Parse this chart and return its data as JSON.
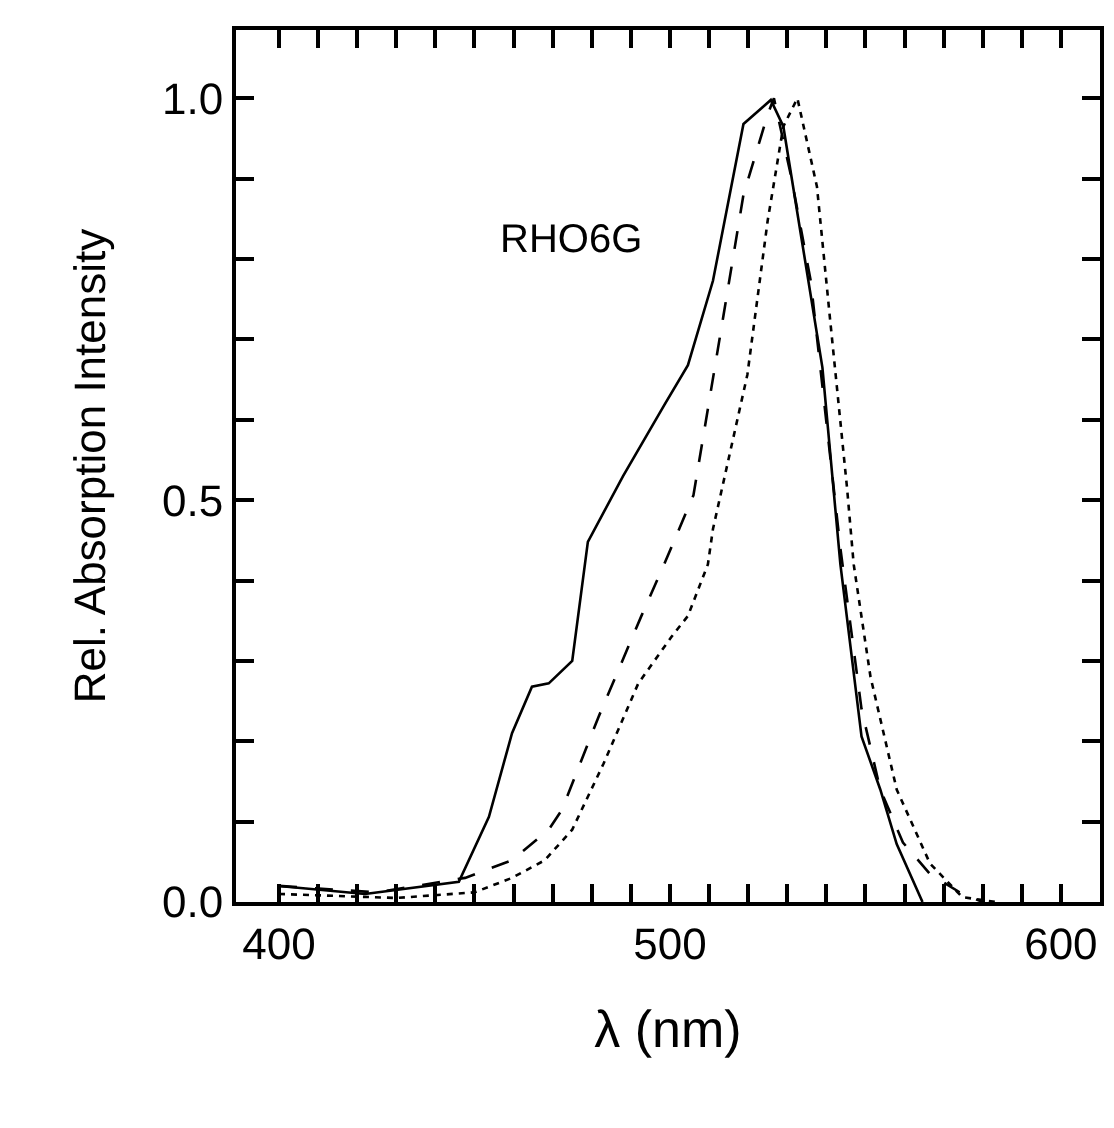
{
  "chart_data": {
    "type": "line",
    "xlabel": "λ (nm)",
    "ylabel": "Rel. Absorption Intensity",
    "annotations": [
      "RHO6G"
    ],
    "xlim": [
      389,
      610
    ],
    "ylim": [
      0,
      1.085
    ],
    "xticks": [
      400,
      {
        "value": 410,
        "label": null
      },
      {
        "value": 420,
        "label": null
      },
      {
        "value": 430,
        "label": null
      },
      {
        "value": 440,
        "label": null
      },
      {
        "value": 450,
        "label": null
      },
      {
        "value": 460,
        "label": null
      },
      {
        "value": 470,
        "label": null
      },
      {
        "value": 480,
        "label": null
      },
      {
        "value": 490,
        "label": null
      },
      500,
      {
        "value": 510,
        "label": null
      },
      {
        "value": 520,
        "label": null
      },
      {
        "value": 530,
        "label": null
      },
      {
        "value": 540,
        "label": null
      },
      {
        "value": 550,
        "label": null
      },
      {
        "value": 560,
        "label": null
      },
      {
        "value": 570,
        "label": null
      },
      {
        "value": 580,
        "label": null
      },
      {
        "value": 590,
        "label": null
      },
      600
    ],
    "yticks": [
      {
        "value": 0,
        "label": "0.0"
      },
      {
        "value": 0.1,
        "label": null
      },
      {
        "value": 0.2,
        "label": null
      },
      {
        "value": 0.3,
        "label": null
      },
      {
        "value": 0.4,
        "label": null
      },
      0.5,
      {
        "value": 0.6,
        "label": null
      },
      {
        "value": 0.7,
        "label": null
      },
      {
        "value": 0.8,
        "label": null
      },
      {
        "value": 0.9,
        "label": null
      },
      {
        "value": 1,
        "label": "1.0"
      }
    ],
    "marker": "none",
    "series": [
      {
        "color": "#000000",
        "line_style": "solid",
        "x": [
          400,
          422,
          446,
          453.7,
          459.6,
          464.7,
          469,
          475,
          479,
          488,
          498.5,
          504.6,
          511,
          518.8,
          525.8,
          529,
          534,
          539,
          543.6,
          549,
          553.8,
          558,
          564.6
        ],
        "values": [
          0.02,
          0.01,
          0.025,
          0.106,
          0.21,
          0.268,
          0.272,
          0.3,
          0.448,
          0.53,
          0.618,
          0.668,
          0.773,
          0.968,
          0.998,
          0.965,
          0.815,
          0.665,
          0.42,
          0.206,
          0.14,
          0.072,
          0
        ]
      },
      {
        "color": "#000000",
        "line_style": "dashed",
        "x": [
          400,
          425,
          447.6,
          459.6,
          469,
          472.4,
          481.7,
          492.7,
          498.5,
          506,
          513.7,
          518.8,
          525,
          526.6,
          530.9,
          536,
          543.6,
          549,
          553.8,
          559.6,
          566.5,
          574.8,
          580
        ],
        "values": [
          0.02,
          0.012,
          0.03,
          0.052,
          0.09,
          0.115,
          0.23,
          0.356,
          0.42,
          0.506,
          0.73,
          0.88,
          0.98,
          1,
          0.905,
          0.773,
          0.44,
          0.24,
          0.14,
          0.074,
          0.035,
          0.01,
          0
        ]
      },
      {
        "color": "#000000",
        "line_style": "dotted",
        "x": [
          400,
          430,
          450,
          459.6,
          468,
          475,
          483,
          491.9,
          500.4,
          504.6,
          509.7,
          511,
          519.8,
          525,
          529,
          532.6,
          537.6,
          541,
          545.3,
          547,
          551.3,
          558,
          566.5,
          574.8,
          583.5
        ],
        "values": [
          0.01,
          0.005,
          0.012,
          0.03,
          0.052,
          0.09,
          0.172,
          0.272,
          0.33,
          0.356,
          0.42,
          0.464,
          0.656,
          0.848,
          0.965,
          1,
          0.89,
          0.723,
          0.515,
          0.42,
          0.28,
          0.14,
          0.048,
          0.006,
          0
        ]
      }
    ]
  }
}
